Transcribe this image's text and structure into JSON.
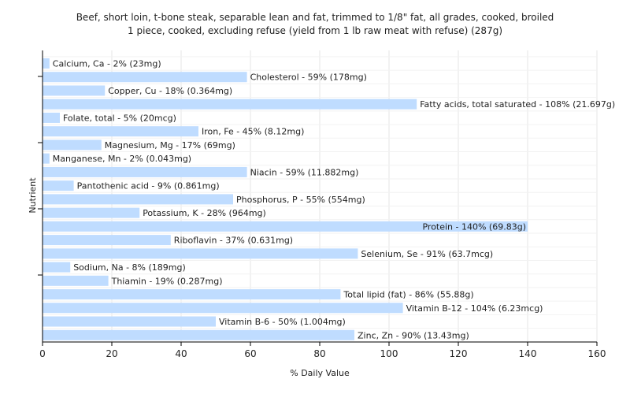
{
  "chart_data": {
    "type": "bar",
    "orientation": "horizontal",
    "title": "Beef, short loin, t-bone steak, separable lean and fat, trimmed to 1/8\" fat, all grades, cooked, broiled",
    "subtitle": "1 piece, cooked, excluding refuse (yield from 1 lb raw meat with refuse) (287g)",
    "xlabel": "% Daily Value",
    "ylabel": "Nutrient",
    "xlim": [
      0,
      160
    ],
    "xticks": [
      0,
      20,
      40,
      60,
      80,
      100,
      120,
      140,
      160
    ],
    "grid": true,
    "bar_color": "#bfdcff",
    "categories": [
      "Calcium, Ca",
      "Cholesterol",
      "Copper, Cu",
      "Fatty acids, total saturated",
      "Folate, total",
      "Iron, Fe",
      "Magnesium, Mg",
      "Manganese, Mn",
      "Niacin",
      "Pantothenic acid",
      "Phosphorus, P",
      "Potassium, K",
      "Protein",
      "Riboflavin",
      "Selenium, Se",
      "Sodium, Na",
      "Thiamin",
      "Total lipid (fat)",
      "Vitamin B-12",
      "Vitamin B-6",
      "Zinc, Zn"
    ],
    "values": [
      2,
      59,
      18,
      108,
      5,
      45,
      17,
      2,
      59,
      9,
      55,
      28,
      140,
      37,
      91,
      8,
      19,
      86,
      104,
      50,
      90
    ],
    "labels": [
      "Calcium, Ca - 2% (23mg)",
      "Cholesterol - 59% (178mg)",
      "Copper, Cu - 18% (0.364mg)",
      "Fatty acids, total saturated - 108% (21.697g)",
      "Folate, total - 5% (20mcg)",
      "Iron, Fe - 45% (8.12mg)",
      "Magnesium, Mg - 17% (69mg)",
      "Manganese, Mn - 2% (0.043mg)",
      "Niacin - 59% (11.882mg)",
      "Pantothenic acid - 9% (0.861mg)",
      "Phosphorus, P - 55% (554mg)",
      "Potassium, K - 28% (964mg)",
      "Protein - 140% (69.83g)",
      "Riboflavin - 37% (0.631mg)",
      "Selenium, Se - 91% (63.7mcg)",
      "Sodium, Na - 8% (189mg)",
      "Thiamin - 19% (0.287mg)",
      "Total lipid (fat) - 86% (55.88g)",
      "Vitamin B-12 - 104% (6.23mcg)",
      "Vitamin B-6 - 50% (1.004mg)",
      "Zinc, Zn - 90% (13.43mg)"
    ]
  }
}
